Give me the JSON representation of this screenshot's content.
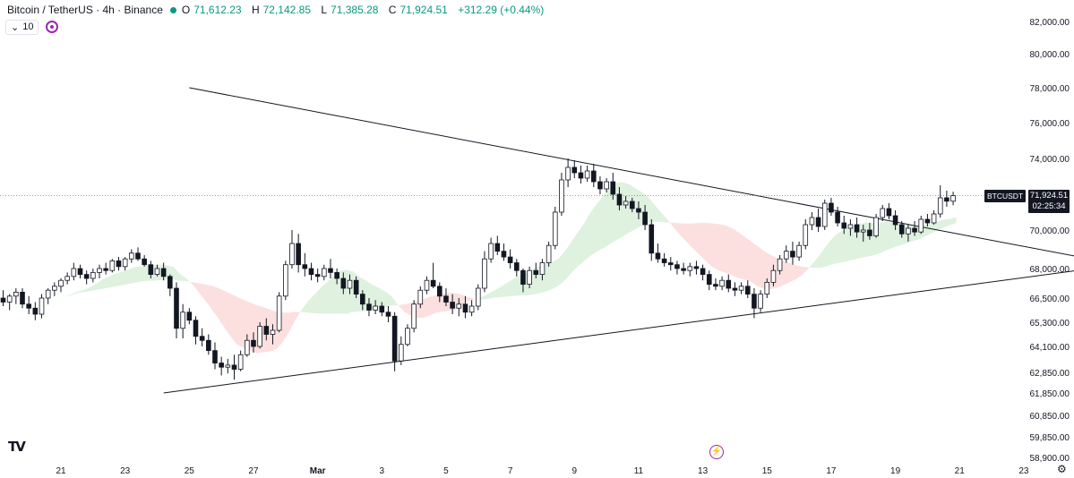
{
  "header": {
    "title": "Bitcoin / TetherUS · 4h · Binance",
    "status_color": "#089981",
    "ohlc": [
      {
        "label": "O",
        "value": "71,612.23"
      },
      {
        "label": "H",
        "value": "72,142.85"
      },
      {
        "label": "L",
        "value": "71,385.28"
      },
      {
        "label": "C",
        "value": "71,924.51"
      },
      {
        "label": "",
        "value": "+312.29 (+0.44%)"
      }
    ]
  },
  "indicator": {
    "chevron": "⌄",
    "value": "10",
    "sync_icon": "sync-icon"
  },
  "price_tag": {
    "symbol": "BTCUSDT",
    "price": "71,924.51",
    "countdown": "02:25:34"
  },
  "footer": {
    "logo": "TV",
    "bolt_icon": "lightning-icon",
    "gear_icon": "gear-icon"
  },
  "colors": {
    "up": "#ffffff",
    "down": "#131722",
    "cloud_green": "#4caf50",
    "cloud_red": "#ef5350",
    "line": "#131722"
  },
  "chart_data": {
    "type": "candlestick",
    "y_tick_labels": [
      "82,000.00",
      "80,000.00",
      "78,000.00",
      "76,000.00",
      "74,000.00",
      "72,000.00",
      "70,000.00",
      "68,000.00",
      "66,500.00",
      "65,300.00",
      "64,100.00",
      "62,850.00",
      "61,850.00",
      "60,850.00",
      "59,850.00",
      "58,900.00"
    ],
    "x_tick_labels": [
      "21",
      "23",
      "25",
      "27",
      "Mar",
      "3",
      "5",
      "7",
      "9",
      "11",
      "13",
      "15",
      "17",
      "19",
      "21",
      "23"
    ],
    "x_ticks_day": [
      21,
      23,
      25,
      27,
      29,
      31,
      33,
      35,
      37,
      39,
      41,
      43,
      45,
      47,
      49,
      51
    ],
    "x_axis_note": "day index: Feb 21 = 21, Mar 1 = 29",
    "candles": [
      [
        19.0,
        66300,
        66800,
        65800,
        66500
      ],
      [
        19.2,
        66500,
        66900,
        66100,
        66300
      ],
      [
        19.4,
        66300,
        66700,
        65900,
        66600
      ],
      [
        19.6,
        66600,
        67000,
        66200,
        66800
      ],
      [
        19.8,
        66800,
        67000,
        66000,
        66200
      ],
      [
        20.0,
        66200,
        66600,
        65700,
        66000
      ],
      [
        20.2,
        66000,
        66300,
        65400,
        65700
      ],
      [
        20.4,
        65700,
        66700,
        65500,
        66500
      ],
      [
        20.6,
        66500,
        67000,
        66200,
        66900
      ],
      [
        20.8,
        66900,
        67300,
        66600,
        67100
      ],
      [
        21.0,
        67100,
        67500,
        66800,
        67400
      ],
      [
        21.2,
        67400,
        67800,
        67200,
        67600
      ],
      [
        21.4,
        67600,
        68300,
        67400,
        68000
      ],
      [
        21.6,
        68000,
        68200,
        67500,
        67700
      ],
      [
        21.8,
        67700,
        67900,
        67200,
        67500
      ],
      [
        22.0,
        67500,
        68000,
        67300,
        67800
      ],
      [
        22.2,
        67800,
        68200,
        67500,
        68000
      ],
      [
        22.4,
        68000,
        68300,
        67700,
        67900
      ],
      [
        22.6,
        67900,
        68500,
        67800,
        68400
      ],
      [
        22.8,
        68400,
        68600,
        67900,
        68100
      ],
      [
        23.0,
        68100,
        68600,
        67900,
        68500
      ],
      [
        23.2,
        68500,
        69000,
        68300,
        68800
      ],
      [
        23.4,
        68800,
        69100,
        68400,
        68500
      ],
      [
        23.6,
        68500,
        68700,
        68100,
        68200
      ],
      [
        23.8,
        68200,
        68400,
        67500,
        67700
      ],
      [
        24.0,
        67700,
        68200,
        67600,
        68000
      ],
      [
        24.2,
        68000,
        68300,
        67400,
        67600
      ],
      [
        24.4,
        67600,
        67700,
        66600,
        67000
      ],
      [
        24.6,
        67000,
        67300,
        64500,
        65000
      ],
      [
        24.8,
        65000,
        66200,
        64500,
        65800
      ],
      [
        25.0,
        65800,
        66000,
        65200,
        65400
      ],
      [
        25.2,
        65400,
        65600,
        64200,
        64600
      ],
      [
        25.4,
        64600,
        65000,
        64100,
        64400
      ],
      [
        25.6,
        64400,
        64700,
        63700,
        63900
      ],
      [
        25.8,
        63900,
        64300,
        63000,
        63300
      ],
      [
        26.0,
        63300,
        63600,
        62700,
        63100
      ],
      [
        26.2,
        63100,
        63500,
        62800,
        63200
      ],
      [
        26.4,
        63200,
        63700,
        62500,
        63000
      ],
      [
        26.6,
        63000,
        63900,
        62900,
        63700
      ],
      [
        26.8,
        63700,
        64700,
        63600,
        64400
      ],
      [
        27.0,
        64400,
        64800,
        63800,
        64100
      ],
      [
        27.2,
        64100,
        65300,
        64000,
        65100
      ],
      [
        27.4,
        65100,
        65500,
        64400,
        64700
      ],
      [
        27.6,
        64700,
        65200,
        64200,
        64900
      ],
      [
        27.8,
        64900,
        66800,
        64800,
        66600
      ],
      [
        28.0,
        66600,
        68400,
        66400,
        68200
      ],
      [
        28.2,
        68200,
        70000,
        68000,
        69300
      ],
      [
        28.4,
        69300,
        69800,
        67800,
        68200
      ],
      [
        28.6,
        68200,
        68800,
        67600,
        68000
      ],
      [
        28.8,
        68000,
        68300,
        67400,
        67700
      ],
      [
        29.0,
        67700,
        68000,
        67300,
        67600
      ],
      [
        29.2,
        67600,
        68200,
        67400,
        68000
      ],
      [
        29.4,
        68000,
        68500,
        67500,
        67800
      ],
      [
        29.6,
        67800,
        68000,
        67200,
        67500
      ],
      [
        29.8,
        67500,
        67800,
        66700,
        67000
      ],
      [
        30.0,
        67000,
        67700,
        66700,
        67400
      ],
      [
        30.2,
        67400,
        67600,
        66500,
        66700
      ],
      [
        30.4,
        66700,
        66900,
        65900,
        66200
      ],
      [
        30.6,
        66200,
        66500,
        65600,
        65900
      ],
      [
        30.8,
        65900,
        66400,
        65700,
        66100
      ],
      [
        31.0,
        66100,
        66300,
        65600,
        65800
      ],
      [
        31.2,
        65800,
        66100,
        65300,
        65600
      ],
      [
        31.4,
        65600,
        65800,
        62900,
        63400
      ],
      [
        31.6,
        63400,
        64600,
        63200,
        64200
      ],
      [
        31.8,
        64200,
        65200,
        64100,
        65000
      ],
      [
        32.0,
        65000,
        66400,
        64800,
        66200
      ],
      [
        32.2,
        66200,
        67100,
        66000,
        66900
      ],
      [
        32.4,
        66900,
        67600,
        66700,
        67400
      ],
      [
        32.6,
        67400,
        68300,
        67000,
        67100
      ],
      [
        32.8,
        67100,
        67300,
        66300,
        66600
      ],
      [
        33.0,
        66600,
        67000,
        66100,
        66300
      ],
      [
        33.2,
        66300,
        66700,
        65700,
        66000
      ],
      [
        33.4,
        66000,
        66500,
        65600,
        66200
      ],
      [
        33.6,
        66200,
        66600,
        65500,
        65800
      ],
      [
        33.8,
        65800,
        66400,
        65600,
        66100
      ],
      [
        34.0,
        66100,
        67200,
        65900,
        67000
      ],
      [
        34.2,
        67000,
        68900,
        66800,
        68500
      ],
      [
        34.4,
        68500,
        69600,
        68300,
        69300
      ],
      [
        34.6,
        69300,
        69700,
        68700,
        68900
      ],
      [
        34.8,
        68900,
        69300,
        68400,
        68600
      ],
      [
        35.0,
        68600,
        69000,
        68000,
        68300
      ],
      [
        35.2,
        68300,
        68500,
        67600,
        67900
      ],
      [
        35.4,
        67900,
        68000,
        66800,
        67200
      ],
      [
        35.6,
        67200,
        68100,
        67000,
        67900
      ],
      [
        35.8,
        67900,
        68300,
        67500,
        67700
      ],
      [
        36.0,
        67700,
        68500,
        67400,
        68300
      ],
      [
        36.2,
        68300,
        69400,
        68100,
        69200
      ],
      [
        36.4,
        69200,
        71300,
        69000,
        71000
      ],
      [
        36.6,
        71000,
        73200,
        70800,
        72800
      ],
      [
        36.8,
        72800,
        74000,
        72400,
        73500
      ],
      [
        37.0,
        73500,
        73900,
        72900,
        73200
      ],
      [
        37.2,
        73200,
        73600,
        72600,
        72900
      ],
      [
        37.4,
        72900,
        73600,
        72700,
        73300
      ],
      [
        37.6,
        73300,
        73700,
        72400,
        72700
      ],
      [
        37.8,
        72700,
        73000,
        72000,
        72300
      ],
      [
        38.0,
        72300,
        72900,
        72100,
        72700
      ],
      [
        38.2,
        72700,
        73200,
        71700,
        72000
      ],
      [
        38.4,
        72000,
        72400,
        71100,
        71400
      ],
      [
        38.6,
        71400,
        71900,
        71200,
        71600
      ],
      [
        38.8,
        71600,
        71800,
        71000,
        71200
      ],
      [
        39.0,
        71200,
        71600,
        70600,
        71000
      ],
      [
        39.2,
        71000,
        71400,
        70000,
        70300
      ],
      [
        39.4,
        70300,
        70600,
        68400,
        68800
      ],
      [
        39.6,
        68800,
        69300,
        68300,
        68500
      ],
      [
        39.8,
        68500,
        68800,
        68100,
        68300
      ],
      [
        40.0,
        68300,
        68600,
        67900,
        68200
      ],
      [
        40.2,
        68200,
        68400,
        67700,
        68000
      ],
      [
        40.4,
        68000,
        68300,
        67700,
        67900
      ],
      [
        40.6,
        67900,
        68300,
        67600,
        68100
      ],
      [
        40.8,
        68100,
        68400,
        67700,
        68000
      ],
      [
        41.0,
        68000,
        68200,
        67400,
        67700
      ],
      [
        41.2,
        67700,
        67900,
        66900,
        67200
      ],
      [
        41.4,
        67200,
        67500,
        66900,
        67100
      ],
      [
        41.6,
        67100,
        67600,
        66900,
        67400
      ],
      [
        41.8,
        67400,
        67700,
        66800,
        67000
      ],
      [
        42.0,
        67000,
        67300,
        66600,
        66900
      ],
      [
        42.2,
        66900,
        67300,
        66700,
        67100
      ],
      [
        42.4,
        67100,
        67400,
        66500,
        66700
      ],
      [
        42.6,
        66700,
        67000,
        65500,
        66000
      ],
      [
        42.8,
        66000,
        66900,
        65800,
        66700
      ],
      [
        43.0,
        66700,
        67500,
        66500,
        67300
      ],
      [
        43.2,
        67300,
        68200,
        67100,
        67900
      ],
      [
        43.4,
        67900,
        68700,
        67700,
        68500
      ],
      [
        43.6,
        68500,
        69200,
        68300,
        68900
      ],
      [
        43.8,
        68900,
        69400,
        68200,
        68600
      ],
      [
        44.0,
        68600,
        69400,
        68400,
        69200
      ],
      [
        44.2,
        69200,
        70600,
        69000,
        70300
      ],
      [
        44.4,
        70300,
        71000,
        70000,
        70700
      ],
      [
        44.6,
        70700,
        71200,
        69900,
        70200
      ],
      [
        44.8,
        70200,
        71700,
        70000,
        71500
      ],
      [
        45.0,
        71500,
        71800,
        70800,
        71000
      ],
      [
        45.2,
        71000,
        71300,
        70200,
        70400
      ],
      [
        45.4,
        70400,
        70800,
        69800,
        70100
      ],
      [
        45.6,
        70100,
        70600,
        69700,
        70300
      ],
      [
        45.8,
        70300,
        70700,
        69600,
        69900
      ],
      [
        46.0,
        69900,
        70300,
        69400,
        70000
      ],
      [
        46.2,
        70000,
        70400,
        69500,
        69700
      ],
      [
        46.4,
        69700,
        70900,
        69600,
        70700
      ],
      [
        46.6,
        70700,
        71400,
        70500,
        71200
      ],
      [
        46.8,
        71200,
        71500,
        70600,
        70800
      ],
      [
        47.0,
        70800,
        71100,
        70000,
        70300
      ],
      [
        47.2,
        70300,
        70500,
        69600,
        69800
      ],
      [
        47.4,
        69800,
        70300,
        69400,
        70100
      ],
      [
        47.6,
        70100,
        70500,
        69700,
        69900
      ],
      [
        47.8,
        69900,
        70800,
        69800,
        70600
      ],
      [
        48.0,
        70600,
        70900,
        70200,
        70400
      ],
      [
        48.2,
        70400,
        71100,
        70300,
        70900
      ],
      [
        48.4,
        70900,
        72500,
        70700,
        71800
      ],
      [
        48.6,
        71800,
        72200,
        71300,
        71612.23
      ],
      [
        48.8,
        71612.23,
        72142.85,
        71385.28,
        71924.51
      ]
    ],
    "trendlines": [
      {
        "name": "upper",
        "from": [
          25.0,
          78000
        ],
        "to": [
          54.0,
          68200
        ]
      },
      {
        "name": "lower",
        "from": [
          24.2,
          61850
        ],
        "to": [
          54.0,
          68200
        ]
      }
    ],
    "current_price": 71924.51
  }
}
